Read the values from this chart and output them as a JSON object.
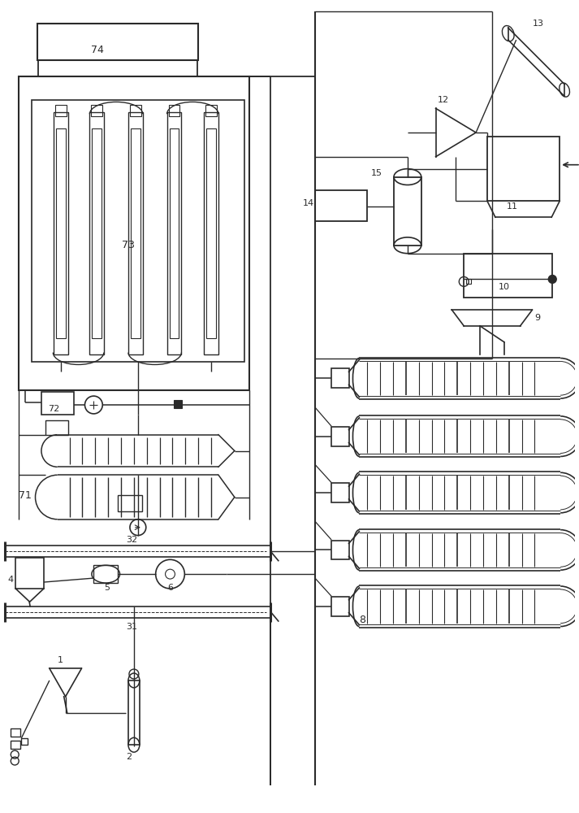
{
  "bg_color": "#ffffff",
  "line_color": "#2a2a2a",
  "line_width": 1.2,
  "fig_width": 7.13,
  "fig_height": 10.0
}
